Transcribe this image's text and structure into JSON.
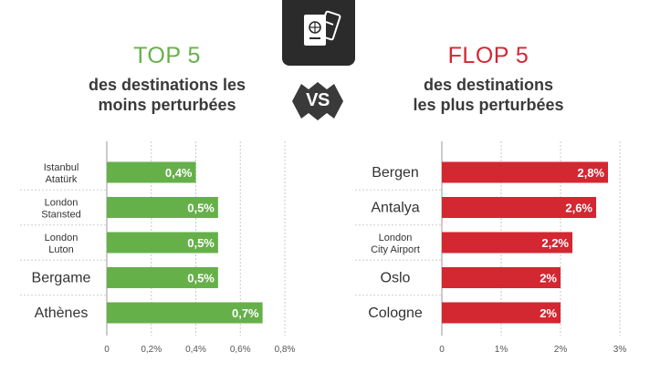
{
  "left": {
    "title": "TOP 5",
    "subtitle_line1": "des destinations les",
    "subtitle_line2": "moins perturbées",
    "color": "#66b04a"
  },
  "right": {
    "title": "FLOP 5",
    "subtitle_line1": "des destinations",
    "subtitle_line2": "les plus perturbées",
    "color": "#d32732"
  },
  "vs_label": "VS",
  "badge_icon": "passport-and-ticket-icon",
  "chart_data": [
    {
      "type": "bar",
      "orientation": "horizontal",
      "categories": [
        [
          "Istanbul",
          "Atatürk"
        ],
        [
          "London",
          "Stansted"
        ],
        [
          "London",
          "Luton"
        ],
        [
          "Bergame"
        ],
        [
          "Athènes"
        ]
      ],
      "values": [
        0.4,
        0.5,
        0.5,
        0.5,
        0.7
      ],
      "value_labels": [
        "0,4%",
        "0,5%",
        "0,5%",
        "0,5%",
        "0,7%"
      ],
      "xlim": [
        0,
        0.8
      ],
      "xticks": [
        0,
        0.2,
        0.4,
        0.6,
        0.8
      ],
      "xtick_labels": [
        "0",
        "0,2%",
        "0,4%",
        "0,6%",
        "0,8%"
      ],
      "grid": "vertical dotted",
      "color": "#66b04a"
    },
    {
      "type": "bar",
      "orientation": "horizontal",
      "categories": [
        [
          "Bergen"
        ],
        [
          "Antalya"
        ],
        [
          "London",
          "City Airport"
        ],
        [
          "Oslo"
        ],
        [
          "Cologne"
        ]
      ],
      "values": [
        2.8,
        2.6,
        2.2,
        2,
        2
      ],
      "value_labels": [
        "2,8%",
        "2,6%",
        "2,2%",
        "2%",
        "2%"
      ],
      "xlim": [
        0,
        3
      ],
      "xticks": [
        0,
        1,
        2,
        3
      ],
      "xtick_labels": [
        "0",
        "1%",
        "2%",
        "3%"
      ],
      "grid": "vertical dotted",
      "color": "#d32732"
    }
  ]
}
